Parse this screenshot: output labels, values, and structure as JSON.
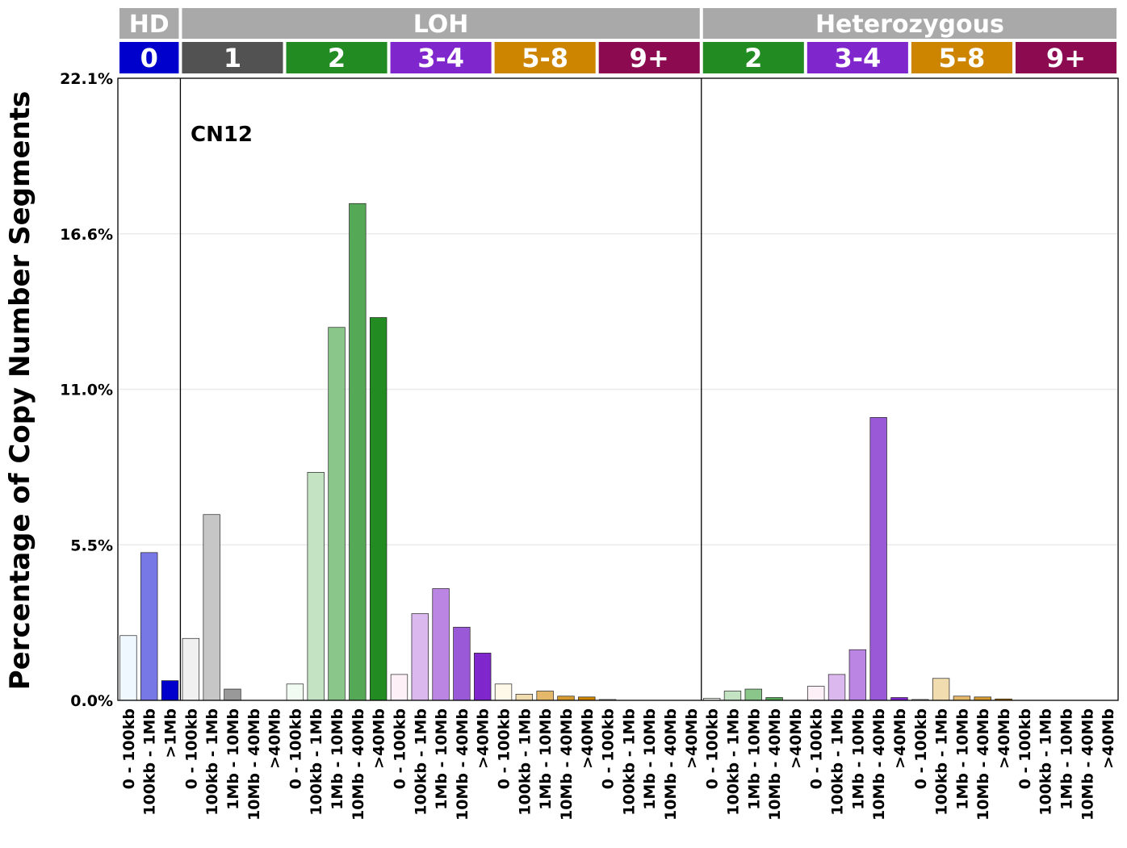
{
  "chart_data": {
    "type": "bar",
    "ylabel": "Percentage of Copy Number Segments",
    "annotation": "CN12",
    "y_ticks": [
      "0.0%",
      "5.5%",
      "11.0%",
      "16.6%",
      "22.1%"
    ],
    "ylim": [
      0,
      22.1
    ],
    "grid": "horizontal",
    "groups": [
      {
        "label": "HD",
        "color": "#a9a9a9"
      },
      {
        "label": "LOH",
        "color": "#a9a9a9"
      },
      {
        "label": "Heterozygous",
        "color": "#a9a9a9"
      }
    ],
    "copy_number_blocks": [
      {
        "label": "0",
        "group": "HD",
        "color": "#0000cd"
      },
      {
        "label": "1",
        "group": "LOH",
        "color": "#525252"
      },
      {
        "label": "2",
        "group": "LOH",
        "color": "#228b22"
      },
      {
        "label": "3-4",
        "group": "LOH",
        "color": "#7f26cd"
      },
      {
        "label": "5-8",
        "group": "LOH",
        "color": "#cd8500"
      },
      {
        "label": "9+",
        "group": "LOH",
        "color": "#8b0a50"
      },
      {
        "label": "2",
        "group": "Heterozygous",
        "color": "#228b22"
      },
      {
        "label": "3-4",
        "group": "Heterozygous",
        "color": "#7f26cd"
      },
      {
        "label": "5-8",
        "group": "Heterozygous",
        "color": "#cd8500"
      },
      {
        "label": "9+",
        "group": "Heterozygous",
        "color": "#8b0a50"
      }
    ],
    "categories": [
      "0 - 100kb",
      "100kb - 1Mb",
      ">1Mb",
      "0 - 100kb",
      "100kb - 1Mb",
      "1Mb - 10Mb",
      "10Mb - 40Mb",
      ">40Mb",
      "0 - 100kb",
      "100kb - 1Mb",
      "1Mb - 10Mb",
      "10Mb - 40Mb",
      ">40Mb",
      "0 - 100kb",
      "100kb - 1Mb",
      "1Mb - 10Mb",
      "10Mb - 40Mb",
      ">40Mb",
      "0 - 100kb",
      "100kb - 1Mb",
      "1Mb - 10Mb",
      "10Mb - 40Mb",
      ">40Mb",
      "0 - 100kb",
      "100kb - 1Mb",
      "1Mb - 10Mb",
      "10Mb - 40Mb",
      ">40Mb",
      "0 - 100kb",
      "100kb - 1Mb",
      "1Mb - 10Mb",
      "10Mb - 40Mb",
      ">40Mb",
      "0 - 100kb",
      "100kb - 1Mb",
      "1Mb - 10Mb",
      "10Mb - 40Mb",
      ">40Mb",
      "0 - 100kb",
      "100kb - 1Mb",
      "1Mb - 10Mb",
      "10Mb - 40Mb",
      ">40Mb",
      "0 - 100kb",
      "100kb - 1Mb",
      "1Mb - 10Mb",
      "10Mb - 40Mb",
      ">40Mb"
    ],
    "values": [
      2.3,
      5.25,
      0.7,
      2.2,
      6.6,
      0.4,
      0.0,
      0.0,
      0.58,
      8.1,
      13.25,
      17.65,
      13.6,
      0.92,
      3.08,
      3.97,
      2.6,
      1.68,
      0.58,
      0.22,
      0.33,
      0.15,
      0.12,
      0.03,
      0.0,
      0.0,
      0.0,
      0.0,
      0.07,
      0.33,
      0.4,
      0.1,
      0.0,
      0.5,
      0.92,
      1.8,
      10.05,
      0.1,
      0.03,
      0.78,
      0.15,
      0.12,
      0.05,
      0.0,
      0.0,
      0.0,
      0.0,
      0.0
    ],
    "bar_colors": [
      "#f0f8ff",
      "#7777e6",
      "#0000cd",
      "#f0f0f0",
      "#c6c6c6",
      "#999999",
      "#6b6b6b",
      "#525252",
      "#f2fbf2",
      "#c3e3c3",
      "#8ac58a",
      "#55a855",
      "#228b22",
      "#fdf0f7",
      "#dbb8ee",
      "#bb86e3",
      "#9a5ad8",
      "#7f26cd",
      "#fff9ea",
      "#f1dcb0",
      "#e4b86a",
      "#d49a30",
      "#cd8500",
      "#fdeaf2",
      "#d8a4bb",
      "#b66e8e",
      "#a03d6e",
      "#8b0a50",
      "#f2fbf2",
      "#c3e3c3",
      "#8ac58a",
      "#55a855",
      "#228b22",
      "#fdf0f7",
      "#dbb8ee",
      "#bb86e3",
      "#9a5ad8",
      "#7f26cd",
      "#fff9ea",
      "#f1dcb0",
      "#e4b86a",
      "#d49a30",
      "#cd8500",
      "#fdeaf2",
      "#d8a4bb",
      "#b66e8e",
      "#a03d6e",
      "#8b0a50"
    ]
  }
}
